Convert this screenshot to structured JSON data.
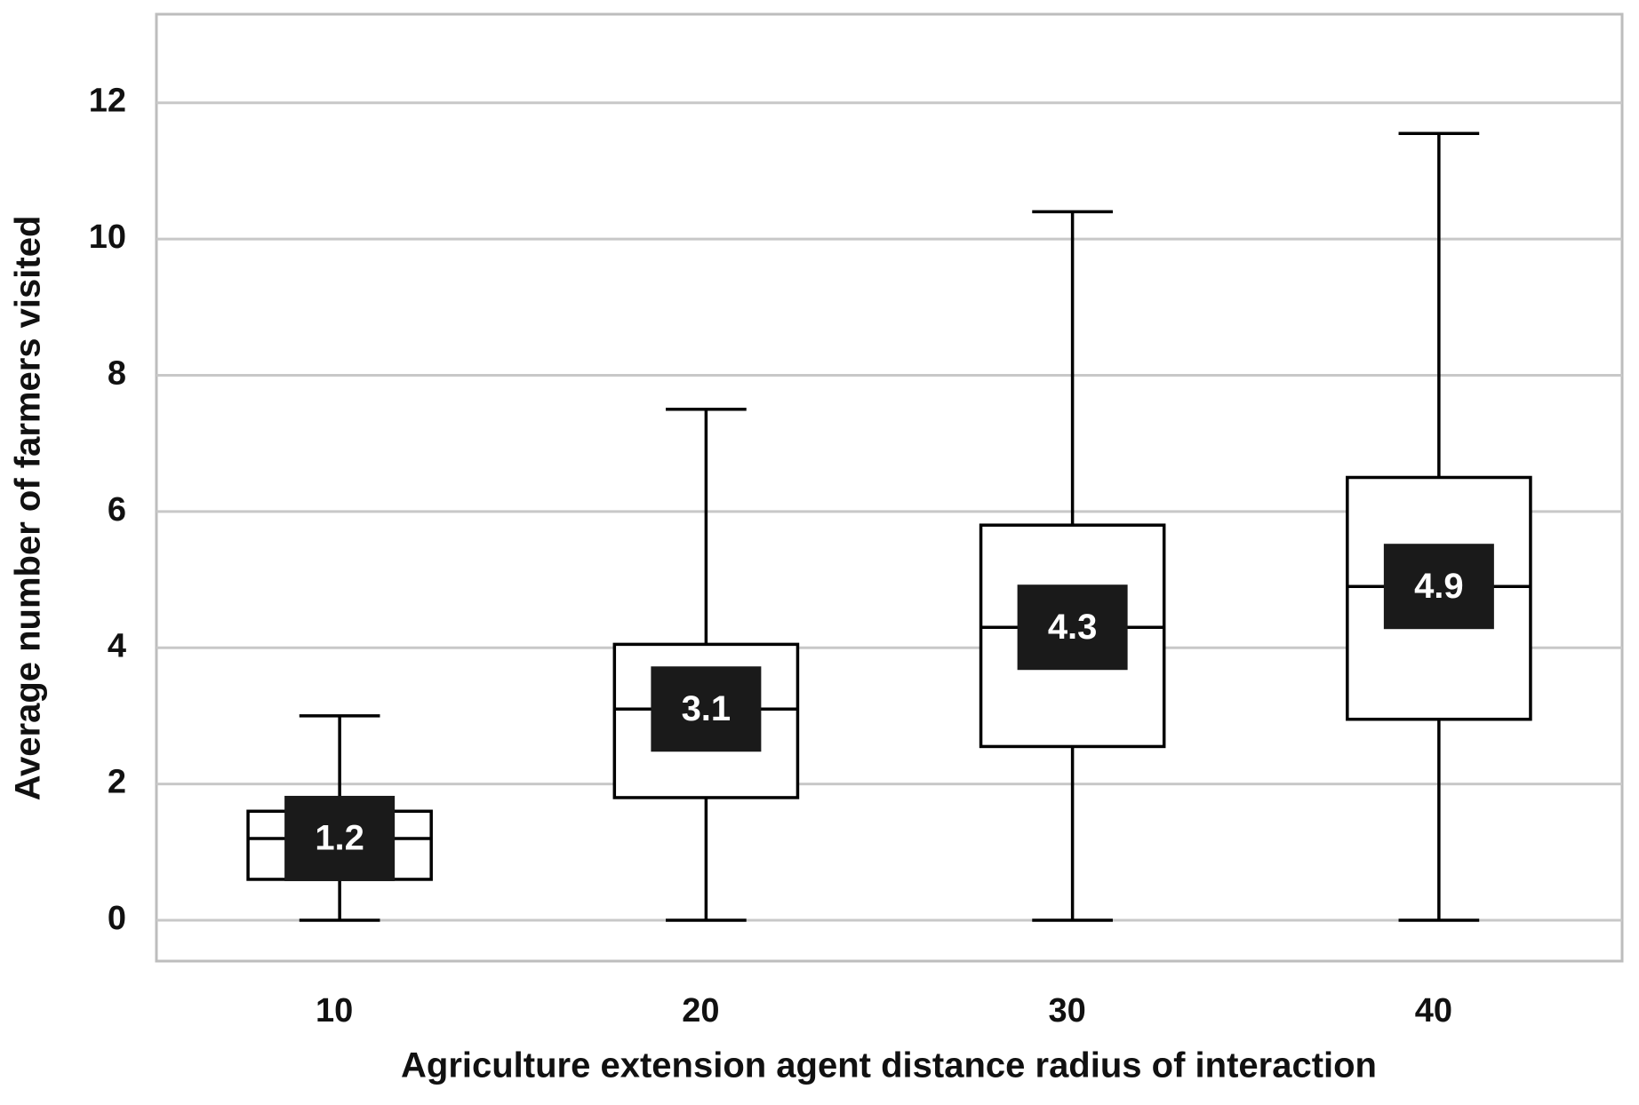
{
  "chart_data": {
    "type": "box",
    "x_label": "Agriculture extension agent distance radius of interaction",
    "y_label": "Average number of farmers visited",
    "categories": [
      "10",
      "20",
      "30",
      "40"
    ],
    "min": [
      0,
      0,
      0,
      0
    ],
    "q1": [
      0.6,
      1.8,
      2.55,
      2.95
    ],
    "median": [
      1.2,
      3.1,
      4.3,
      4.9
    ],
    "q3": [
      1.6,
      4.05,
      5.8,
      6.5
    ],
    "max": [
      3.0,
      7.5,
      10.4,
      11.55
    ],
    "ylim": [
      -0.6,
      13.3
    ],
    "yticks": [
      0,
      2,
      4,
      6,
      8,
      10,
      12
    ],
    "grid": true,
    "color": "#000000",
    "label_color": "#1a1a1a"
  }
}
